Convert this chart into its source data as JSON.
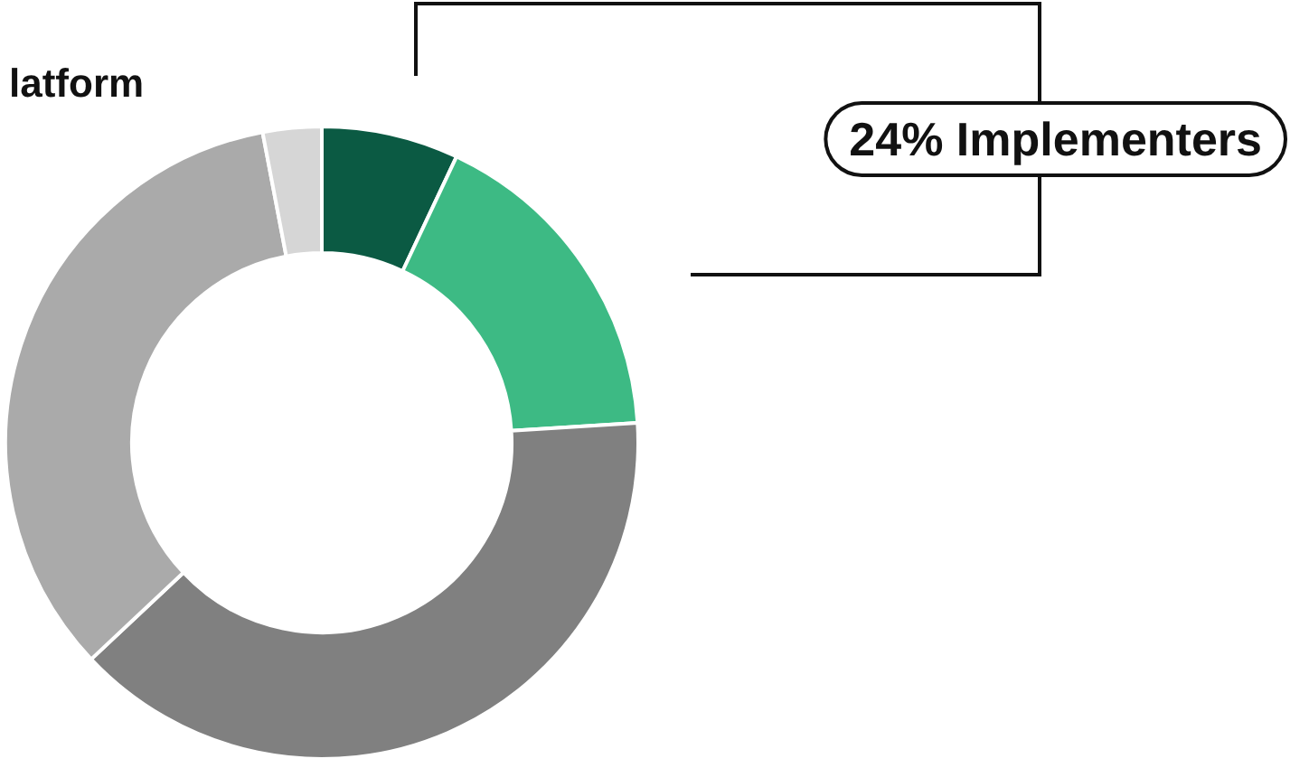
{
  "chart_data": {
    "type": "donut",
    "title": "latform",
    "categories": [
      null,
      null,
      null,
      null,
      null
    ],
    "values": [
      7,
      17,
      39,
      34,
      3
    ],
    "colors": [
      "#0b5a43",
      "#3dba84",
      "#808080",
      "#aaaaaa",
      "#d6d6d6"
    ],
    "annotations": [
      "24% Implementers"
    ]
  }
}
